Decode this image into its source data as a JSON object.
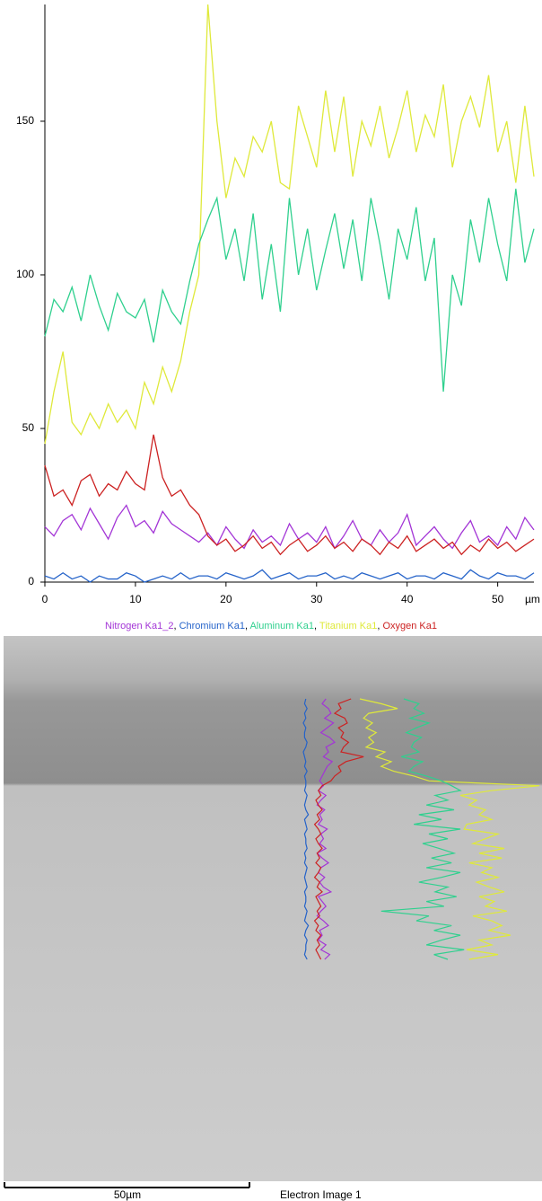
{
  "chart_data": {
    "type": "line",
    "x_label": "µm",
    "x": [
      0,
      1,
      2,
      3,
      4,
      5,
      6,
      7,
      8,
      9,
      10,
      11,
      12,
      13,
      14,
      15,
      16,
      17,
      18,
      19,
      20,
      21,
      22,
      23,
      24,
      25,
      26,
      27,
      28,
      29,
      30,
      31,
      32,
      33,
      34,
      35,
      36,
      37,
      38,
      39,
      40,
      41,
      42,
      43,
      44,
      45,
      46,
      47,
      48,
      49,
      50,
      51,
      52,
      53,
      54
    ],
    "xlim": [
      0,
      54
    ],
    "xticks": [
      0,
      10,
      20,
      30,
      40,
      50
    ],
    "ylim": [
      0,
      188
    ],
    "yticks": [
      0,
      50,
      100,
      150
    ],
    "legend_separator": ", ",
    "series": [
      {
        "name": "Nitrogen Ka1_2",
        "color": "#a335d6",
        "values": [
          18,
          15,
          20,
          22,
          17,
          24,
          19,
          14,
          21,
          25,
          18,
          20,
          16,
          23,
          19,
          17,
          15,
          13,
          16,
          12,
          18,
          14,
          11,
          17,
          13,
          15,
          12,
          19,
          14,
          16,
          13,
          18,
          11,
          15,
          20,
          14,
          12,
          17,
          13,
          16,
          22,
          12,
          15,
          18,
          14,
          11,
          16,
          20,
          13,
          15,
          12,
          18,
          14,
          21,
          17
        ]
      },
      {
        "name": "Chromium Ka1",
        "color": "#2563c9",
        "values": [
          2,
          1,
          3,
          1,
          2,
          0,
          2,
          1,
          1,
          3,
          2,
          0,
          1,
          2,
          1,
          3,
          1,
          2,
          2,
          1,
          3,
          2,
          1,
          2,
          4,
          1,
          2,
          3,
          1,
          2,
          2,
          3,
          1,
          2,
          1,
          3,
          2,
          1,
          2,
          3,
          1,
          2,
          2,
          1,
          3,
          2,
          1,
          4,
          2,
          1,
          3,
          2,
          2,
          1,
          3
        ]
      },
      {
        "name": "Aluminum Ka1",
        "color": "#2fd08e",
        "values": [
          80,
          92,
          88,
          96,
          85,
          100,
          90,
          82,
          94,
          88,
          86,
          92,
          78,
          95,
          88,
          84,
          98,
          110,
          118,
          125,
          105,
          115,
          98,
          120,
          92,
          110,
          88,
          125,
          100,
          115,
          95,
          108,
          120,
          102,
          118,
          98,
          125,
          110,
          92,
          115,
          105,
          122,
          98,
          112,
          62,
          100,
          90,
          118,
          104,
          125,
          110,
          98,
          128,
          104,
          115
        ]
      },
      {
        "name": "Titanium Ka1",
        "color": "#dfe93a",
        "values": [
          45,
          62,
          75,
          52,
          48,
          55,
          50,
          58,
          52,
          56,
          50,
          65,
          58,
          70,
          62,
          72,
          88,
          100,
          188,
          150,
          125,
          138,
          132,
          145,
          140,
          150,
          130,
          128,
          155,
          145,
          135,
          160,
          140,
          158,
          132,
          150,
          142,
          155,
          138,
          148,
          160,
          140,
          152,
          145,
          162,
          135,
          150,
          158,
          148,
          165,
          140,
          150,
          130,
          155,
          132
        ]
      },
      {
        "name": "Oxygen Ka1",
        "color": "#cc2222",
        "values": [
          38,
          28,
          30,
          25,
          33,
          35,
          28,
          32,
          30,
          36,
          32,
          30,
          48,
          34,
          28,
          30,
          25,
          22,
          15,
          12,
          14,
          10,
          12,
          15,
          11,
          13,
          9,
          12,
          14,
          10,
          12,
          15,
          11,
          13,
          10,
          14,
          12,
          9,
          13,
          11,
          15,
          10,
          12,
          14,
          11,
          13,
          9,
          12,
          10,
          14,
          11,
          13,
          10,
          12,
          14
        ]
      }
    ]
  },
  "image": {
    "scale_label": "50µm",
    "caption": "Electron Image 1"
  }
}
